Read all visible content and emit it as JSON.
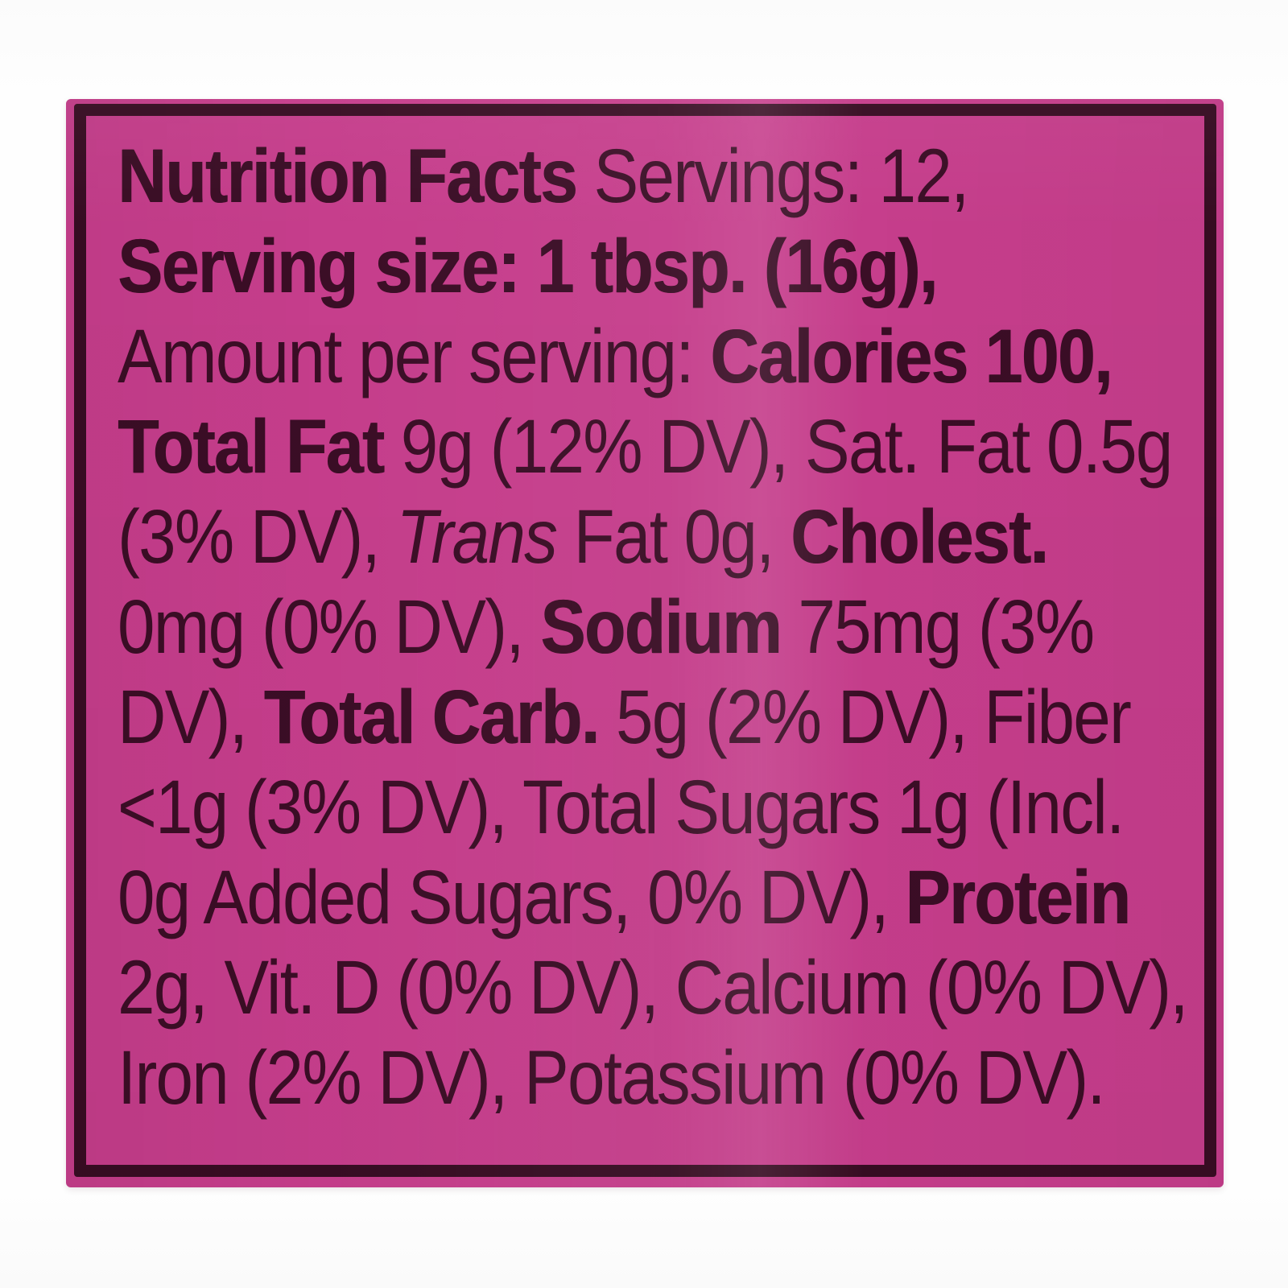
{
  "page": {
    "background_color": "#fdfdfd"
  },
  "label": {
    "background_color": "#c63e8c",
    "border_color": "#380d23",
    "text_color": "#3b0e26",
    "title": "Nutrition Facts",
    "lines": [
      {
        "segments": [
          {
            "t": "Nutrition Facts",
            "s": "b"
          },
          {
            "t": " Servings: 12,",
            "s": "r"
          }
        ]
      },
      {
        "segments": [
          {
            "t": "Serving size: 1 tbsp. (16g),",
            "s": "b"
          }
        ]
      },
      {
        "segments": [
          {
            "t": "Amount per serving: ",
            "s": "r"
          },
          {
            "t": "Calories 100,",
            "s": "b"
          }
        ]
      },
      {
        "segments": [
          {
            "t": "Total Fat",
            "s": "b"
          },
          {
            "t": " 9g (12% DV), Sat. Fat 0.5g",
            "s": "r"
          }
        ]
      },
      {
        "segments": [
          {
            "t": "(3% DV), ",
            "s": "r"
          },
          {
            "t": "Trans",
            "s": "i"
          },
          {
            "t": " Fat 0g, ",
            "s": "r"
          },
          {
            "t": "Cholest.",
            "s": "b"
          }
        ]
      },
      {
        "segments": [
          {
            "t": "0mg (0% DV), ",
            "s": "r"
          },
          {
            "t": "Sodium",
            "s": "b"
          },
          {
            "t": " 75mg (3%",
            "s": "r"
          }
        ]
      },
      {
        "segments": [
          {
            "t": "DV), ",
            "s": "r"
          },
          {
            "t": "Total Carb.",
            "s": "b"
          },
          {
            "t": " 5g (2% DV), Fiber",
            "s": "r"
          }
        ]
      },
      {
        "segments": [
          {
            "t": "<1g (3% DV), Total Sugars 1g (Incl.",
            "s": "r"
          }
        ]
      },
      {
        "segments": [
          {
            "t": "0g Added Sugars, 0% DV), ",
            "s": "r"
          },
          {
            "t": "Protein",
            "s": "b"
          }
        ]
      },
      {
        "segments": [
          {
            "t": "2g, Vit. D (0% DV), Calcium (0% DV),",
            "s": "r"
          }
        ]
      },
      {
        "segments": [
          {
            "t": "Iron (2% DV), Potassium (0% DV).",
            "s": "r"
          }
        ]
      }
    ]
  }
}
